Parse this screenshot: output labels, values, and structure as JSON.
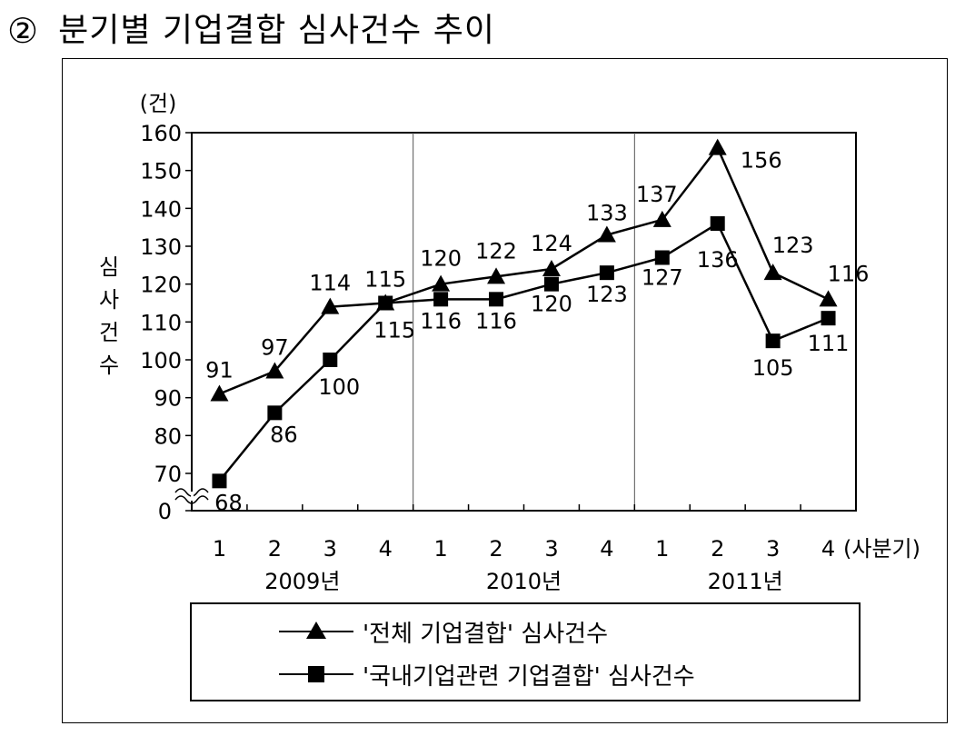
{
  "heading": {
    "number": "②",
    "title": "분기별 기업결합 심사건수 추이"
  },
  "chart_data": {
    "type": "line",
    "unit_label": "(건)",
    "ylabel": "심사건수",
    "ylim": [
      60,
      160
    ],
    "axis_break": {
      "below": 70,
      "baseline_label": "0"
    },
    "y_ticks": [
      70,
      80,
      90,
      100,
      110,
      120,
      130,
      140,
      150,
      160
    ],
    "x_labels": [
      "1",
      "2",
      "3",
      "4",
      "1",
      "2",
      "3",
      "4",
      "1",
      "2",
      "3",
      "4"
    ],
    "x_unit_label": "(사분기)",
    "year_labels": [
      "2009년",
      "2010년",
      "2011년"
    ],
    "grid": "vertical separators between years",
    "legend_position": "bottom",
    "series": [
      {
        "name": "'전체 기업결합' 심사건수",
        "marker": "triangle",
        "values": [
          91,
          97,
          114,
          115,
          120,
          122,
          124,
          133,
          137,
          156,
          123,
          116
        ]
      },
      {
        "name": "'국내기업관련 기업결합' 심사건수",
        "marker": "square",
        "values": [
          68,
          86,
          100,
          115,
          116,
          116,
          120,
          123,
          127,
          136,
          105,
          111
        ]
      }
    ]
  }
}
